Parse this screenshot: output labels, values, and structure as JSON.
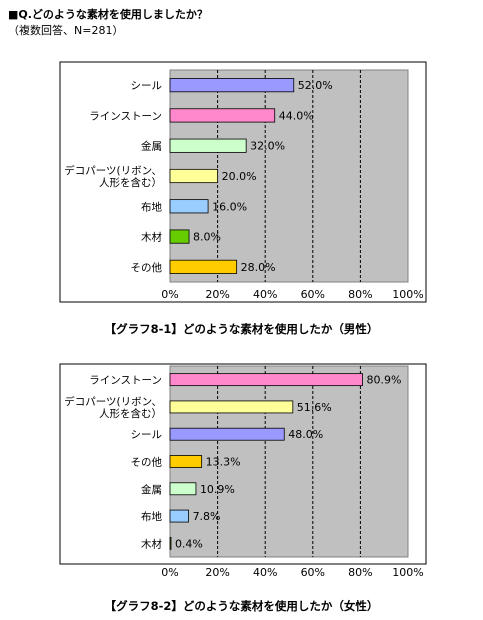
{
  "header": {
    "question": "■Q.どのような素材を使用しましたか？",
    "note": "（複数回答、N=281）"
  },
  "colors": {
    "plot_bg": "#c0c0c0",
    "seal": "#9999ff",
    "rhinestone": "#ff88cc",
    "metal": "#ccffcc",
    "decoparts": "#ffff99",
    "cloth": "#99ccff",
    "wood": "#66cc00",
    "other": "#ffcc00"
  },
  "chart_data": [
    {
      "type": "bar",
      "orientation": "horizontal",
      "caption": "【グラフ8-1】どのような素材を使用したか（男性）",
      "categories": [
        "シール",
        "ラインストーン",
        "金属",
        "デコパーツ(リボン、|人形を含む）",
        "布地",
        "木材",
        "その他"
      ],
      "values": [
        52.0,
        44.0,
        32.0,
        20.0,
        16.0,
        8.0,
        28.0
      ],
      "value_labels": [
        "52.0%",
        "44.0%",
        "32.0%",
        "20.0%",
        "16.0%",
        "8.0%",
        "28.0%"
      ],
      "bar_colors": [
        "#9999ff",
        "#ff88cc",
        "#ccffcc",
        "#ffff99",
        "#99ccff",
        "#66cc00",
        "#ffcc00"
      ],
      "xlim": [
        0,
        100
      ],
      "ticks": [
        "0%",
        "20%",
        "40%",
        "60%",
        "80%",
        "100%"
      ],
      "grid": "vertical-dashed"
    },
    {
      "type": "bar",
      "orientation": "horizontal",
      "caption": "【グラフ8-2】どのような素材を使用したか（女性）",
      "categories": [
        "ラインストーン",
        "デコパーツ(リボン、|人形を含む）",
        "シール",
        "その他",
        "金属",
        "布地",
        "木材"
      ],
      "values": [
        80.9,
        51.6,
        48.0,
        13.3,
        10.9,
        7.8,
        0.4
      ],
      "value_labels": [
        "80.9%",
        "51.6%",
        "48.0%",
        "13.3%",
        "10.9%",
        "7.8%",
        "0.4%"
      ],
      "bar_colors": [
        "#ff88cc",
        "#ffff99",
        "#9999ff",
        "#ffcc00",
        "#ccffcc",
        "#99ccff",
        "#66cc00"
      ],
      "xlim": [
        0,
        100
      ],
      "ticks": [
        "0%",
        "20%",
        "40%",
        "60%",
        "80%",
        "100%"
      ],
      "grid": "vertical-dashed"
    }
  ]
}
